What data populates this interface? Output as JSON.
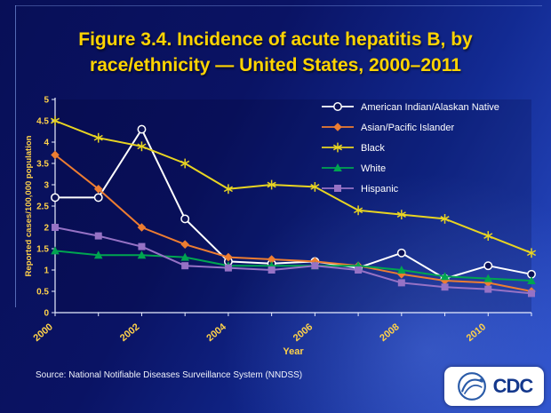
{
  "slide": {
    "title_line1": "Figure 3.4. Incidence of acute hepatitis B, by",
    "title_line2": "race/ethnicity — United States, 2000–2011",
    "source": "Source: National Notifiable Diseases Surveillance System (NNDSS)",
    "logo_text": "CDC"
  },
  "chart_data": {
    "type": "line",
    "x": [
      2000,
      2001,
      2002,
      2003,
      2004,
      2005,
      2006,
      2007,
      2008,
      2009,
      2010,
      2011
    ],
    "series": [
      {
        "name": "American Indian/Alaskan Native",
        "color": "#ffffff",
        "marker": "circle-open",
        "values": [
          2.7,
          2.7,
          4.3,
          2.2,
          1.2,
          1.15,
          1.2,
          1.05,
          1.4,
          0.8,
          1.1,
          0.9
        ]
      },
      {
        "name": "Asian/Pacific Islander",
        "color": "#ed7d31",
        "marker": "diamond",
        "values": [
          3.7,
          2.9,
          2.0,
          1.6,
          1.3,
          1.25,
          1.2,
          1.1,
          0.9,
          0.75,
          0.7,
          0.5
        ]
      },
      {
        "name": "Black",
        "color": "#e8d422",
        "marker": "asterisk",
        "values": [
          4.5,
          4.1,
          3.9,
          3.5,
          2.9,
          3.0,
          2.95,
          2.4,
          2.3,
          2.2,
          1.8,
          1.4
        ]
      },
      {
        "name": "White",
        "color": "#00a550",
        "marker": "triangle",
        "values": [
          1.45,
          1.35,
          1.35,
          1.3,
          1.1,
          1.1,
          1.1,
          1.1,
          1.0,
          0.85,
          0.8,
          0.75
        ]
      },
      {
        "name": "Hispanic",
        "color": "#9672c5",
        "marker": "square",
        "values": [
          2.0,
          1.8,
          1.55,
          1.1,
          1.05,
          1.0,
          1.1,
          1.0,
          0.7,
          0.6,
          0.55,
          0.45
        ]
      }
    ],
    "title": "Incidence of acute hepatitis B, by race/ethnicity — United States, 2000–2011",
    "xlabel": "Year",
    "ylabel": "Reported cases/100,000 population",
    "ylim": [
      0,
      5
    ],
    "ytick_step": 0.5,
    "xtick_label_every": 2,
    "legend_position": "top-right",
    "tick_color": "#ffd24a",
    "axis_color": "#e8edff",
    "legend_text_color": "#ffffff"
  }
}
